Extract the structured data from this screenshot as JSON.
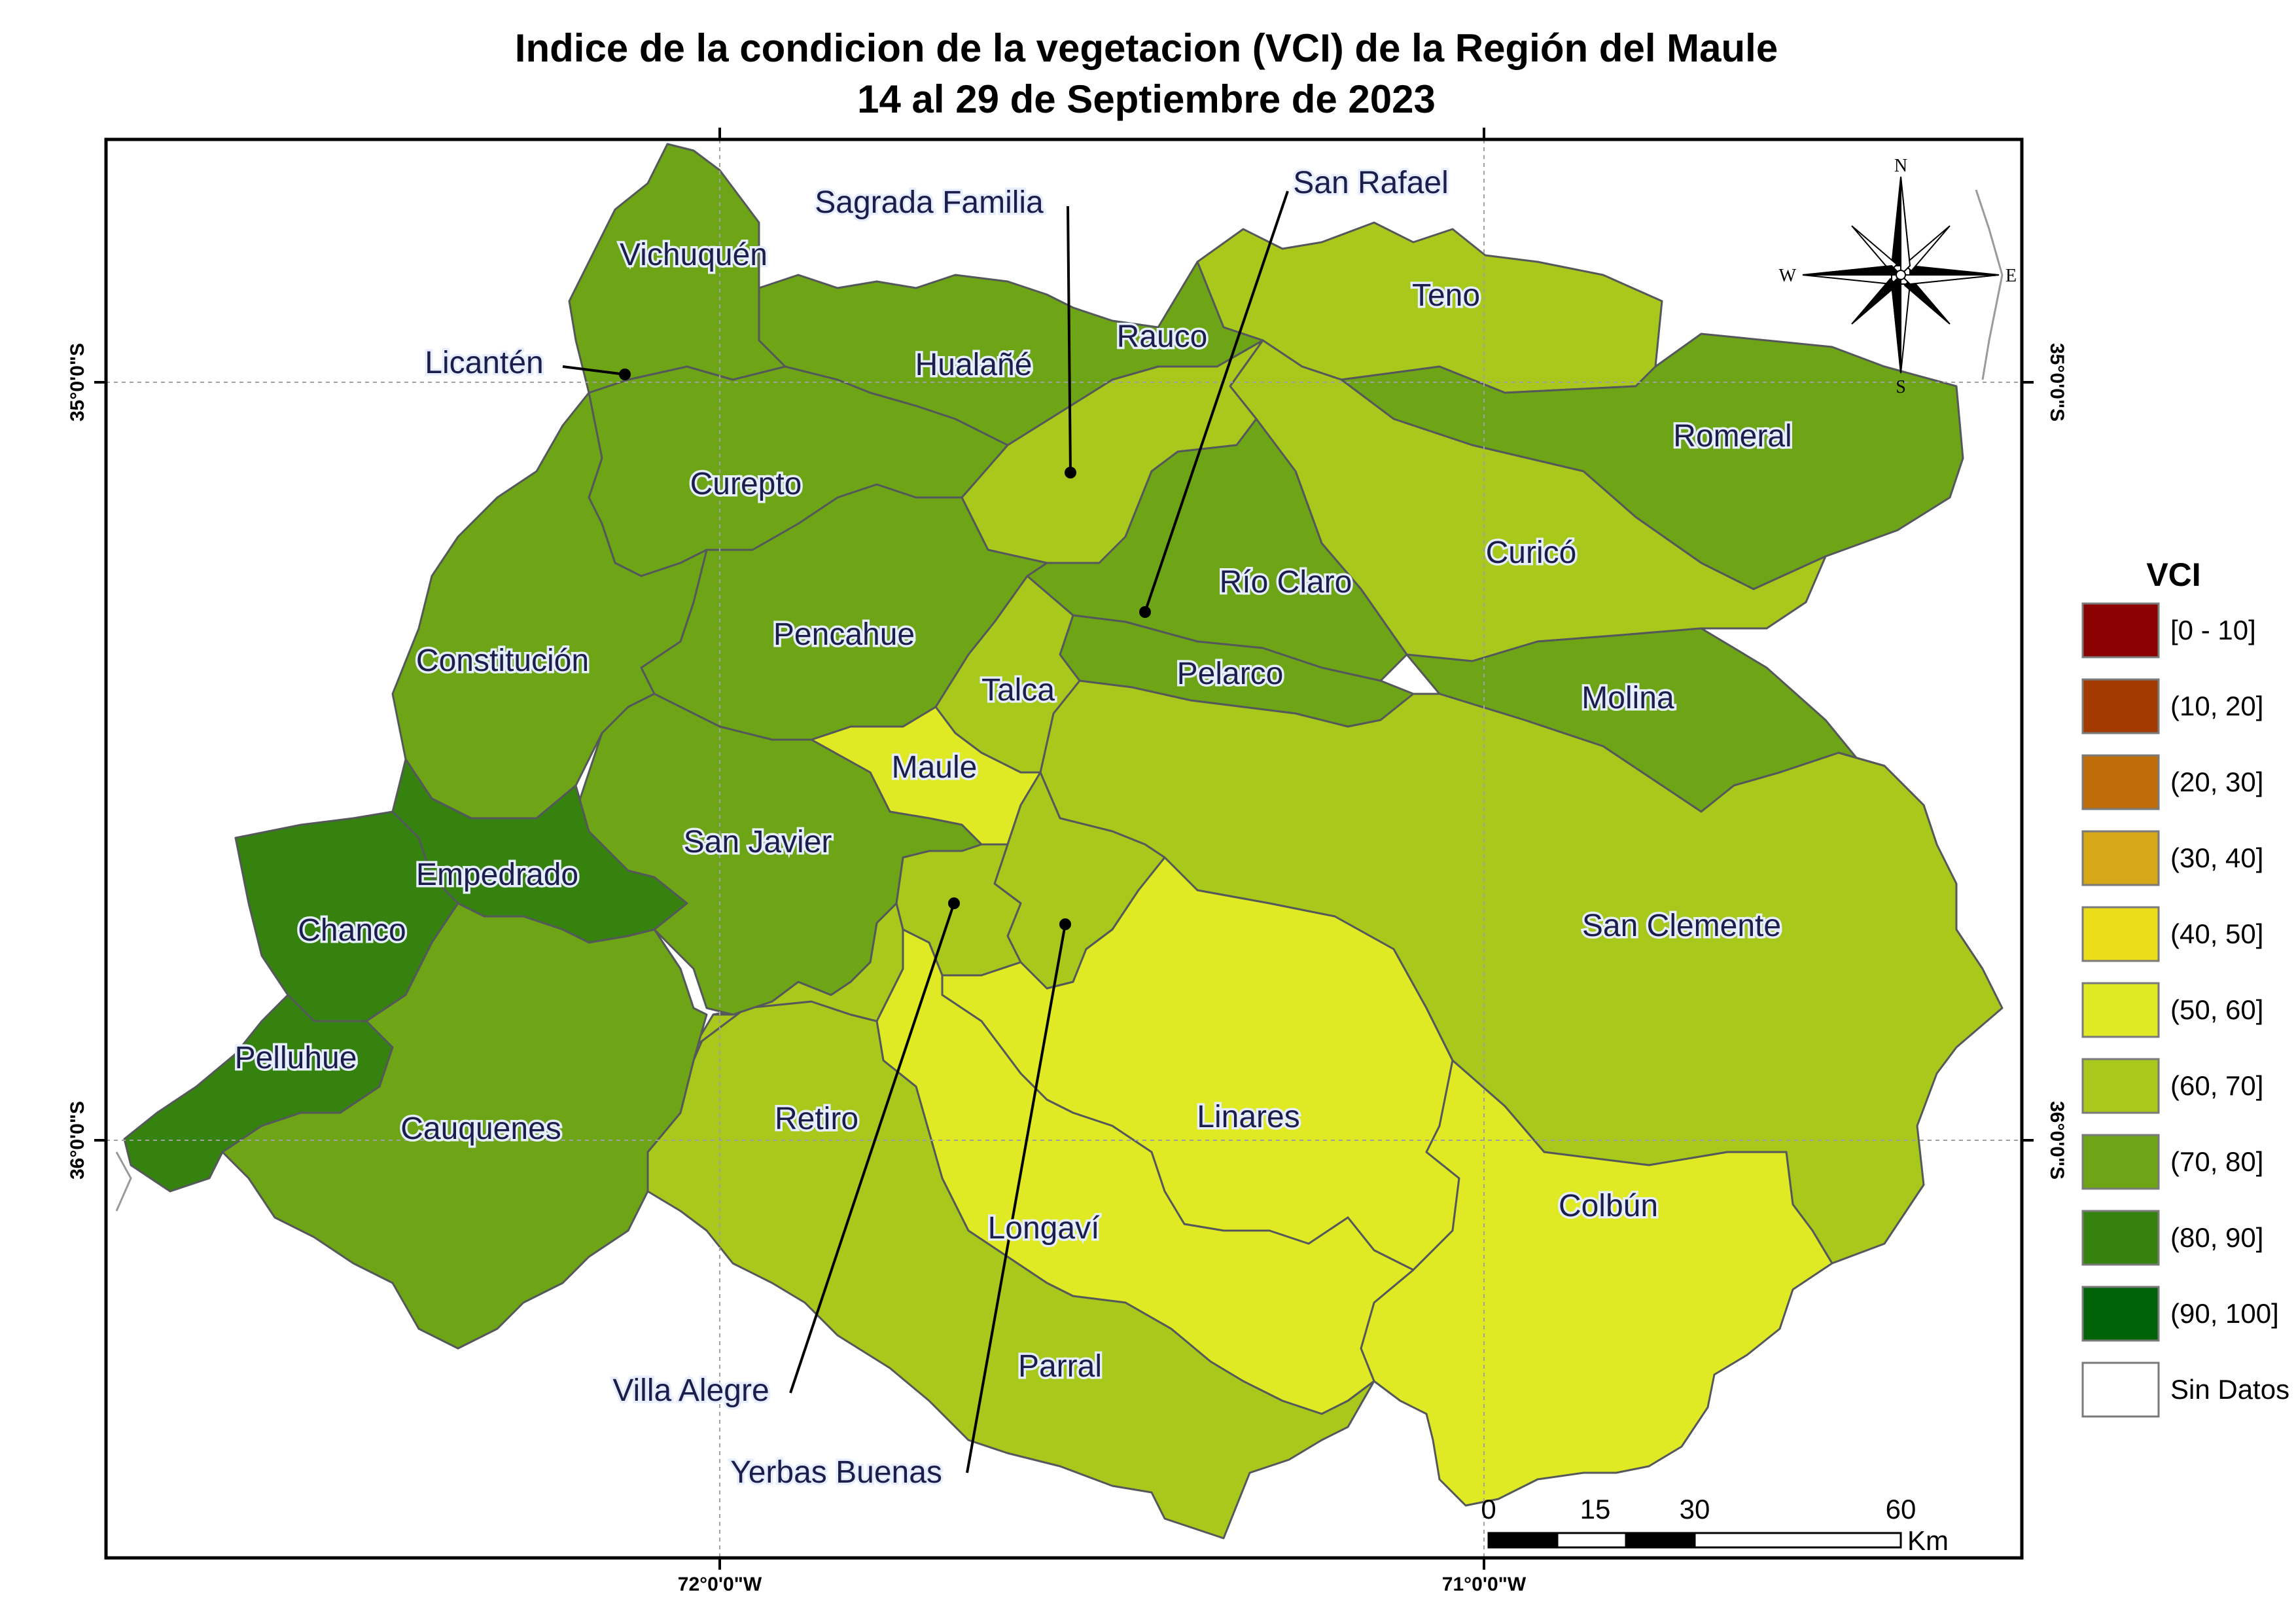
{
  "title": {
    "line1": "Indice de la condicion de la vegetacion (VCI) de la Región del Maule",
    "line2": "14 al 29 de Septiembre de 2023"
  },
  "coordinates": {
    "lat_35": "35°0'0\"S",
    "lat_36": "36°0'0\"S",
    "lon_72": "72°0'0\"W",
    "lon_71": "71°0'0\"W"
  },
  "compass": {
    "n": "N",
    "s": "S",
    "e": "E",
    "w": "W"
  },
  "legend": {
    "title": "VCI",
    "classes": [
      {
        "label": "[0 - 10]",
        "color": "#8b0000"
      },
      {
        "label": "(10, 20]",
        "color": "#a33a00"
      },
      {
        "label": "(20, 30]",
        "color": "#bf6c0b"
      },
      {
        "label": "(30, 40]",
        "color": "#d6a717"
      },
      {
        "label": "(40, 50]",
        "color": "#ecdd1a"
      },
      {
        "label": "(50, 60]",
        "color": "#dfe924"
      },
      {
        "label": "(60, 70]",
        "color": "#a8c81c"
      },
      {
        "label": "(70, 80]",
        "color": "#6ea516"
      },
      {
        "label": "(80, 90]",
        "color": "#36820f"
      },
      {
        "label": "(90, 100]",
        "color": "#006308"
      },
      {
        "label": "Sin Datos",
        "color": "#ffffff"
      }
    ]
  },
  "scalebar": {
    "ticks": [
      "0",
      "15",
      "30",
      "60"
    ],
    "unit": "Km"
  },
  "comunas": [
    {
      "name": "Vichuquén",
      "vci_class": "(70, 80]"
    },
    {
      "name": "Licantén",
      "vci_class": "(70, 80]"
    },
    {
      "name": "Hualañé",
      "vci_class": "(70, 80]"
    },
    {
      "name": "Sagrada Familia",
      "vci_class": "(60, 70]"
    },
    {
      "name": "Rauco",
      "vci_class": "(70, 80]"
    },
    {
      "name": "San Rafael",
      "vci_class": "(70, 80]"
    },
    {
      "name": "Teno",
      "vci_class": "(60, 70]"
    },
    {
      "name": "Romeral",
      "vci_class": "(70, 80]"
    },
    {
      "name": "Curepto",
      "vci_class": "(70, 80]"
    },
    {
      "name": "Curicó",
      "vci_class": "(60, 70]"
    },
    {
      "name": "Río Claro",
      "vci_class": "(70, 80]"
    },
    {
      "name": "Constitución",
      "vci_class": "(70, 80]"
    },
    {
      "name": "Pencahue",
      "vci_class": "(70, 80]"
    },
    {
      "name": "Pelarco",
      "vci_class": "(70, 80]"
    },
    {
      "name": "Talca",
      "vci_class": "(60, 70]"
    },
    {
      "name": "Molina",
      "vci_class": "(70, 80]"
    },
    {
      "name": "Maule",
      "vci_class": "(50, 60]"
    },
    {
      "name": "Empedrado",
      "vci_class": "(80, 90]"
    },
    {
      "name": "San Javier",
      "vci_class": "(70, 80]"
    },
    {
      "name": "Chanco",
      "vci_class": "(80, 90]"
    },
    {
      "name": "San Clemente",
      "vci_class": "(60, 70]"
    },
    {
      "name": "Pelluhue",
      "vci_class": "(80, 90]"
    },
    {
      "name": "Retiro",
      "vci_class": "(60, 70]"
    },
    {
      "name": "Linares",
      "vci_class": "(50, 60]"
    },
    {
      "name": "Cauquenes",
      "vci_class": "(70, 80]"
    },
    {
      "name": "Longaví",
      "vci_class": "(50, 60]"
    },
    {
      "name": "Colbún",
      "vci_class": "(50, 60]"
    },
    {
      "name": "Parral",
      "vci_class": "(60, 70]"
    },
    {
      "name": "Villa Alegre",
      "vci_class": "(60, 70]"
    },
    {
      "name": "Yerbas Buenas",
      "vci_class": "(60, 70]"
    }
  ]
}
